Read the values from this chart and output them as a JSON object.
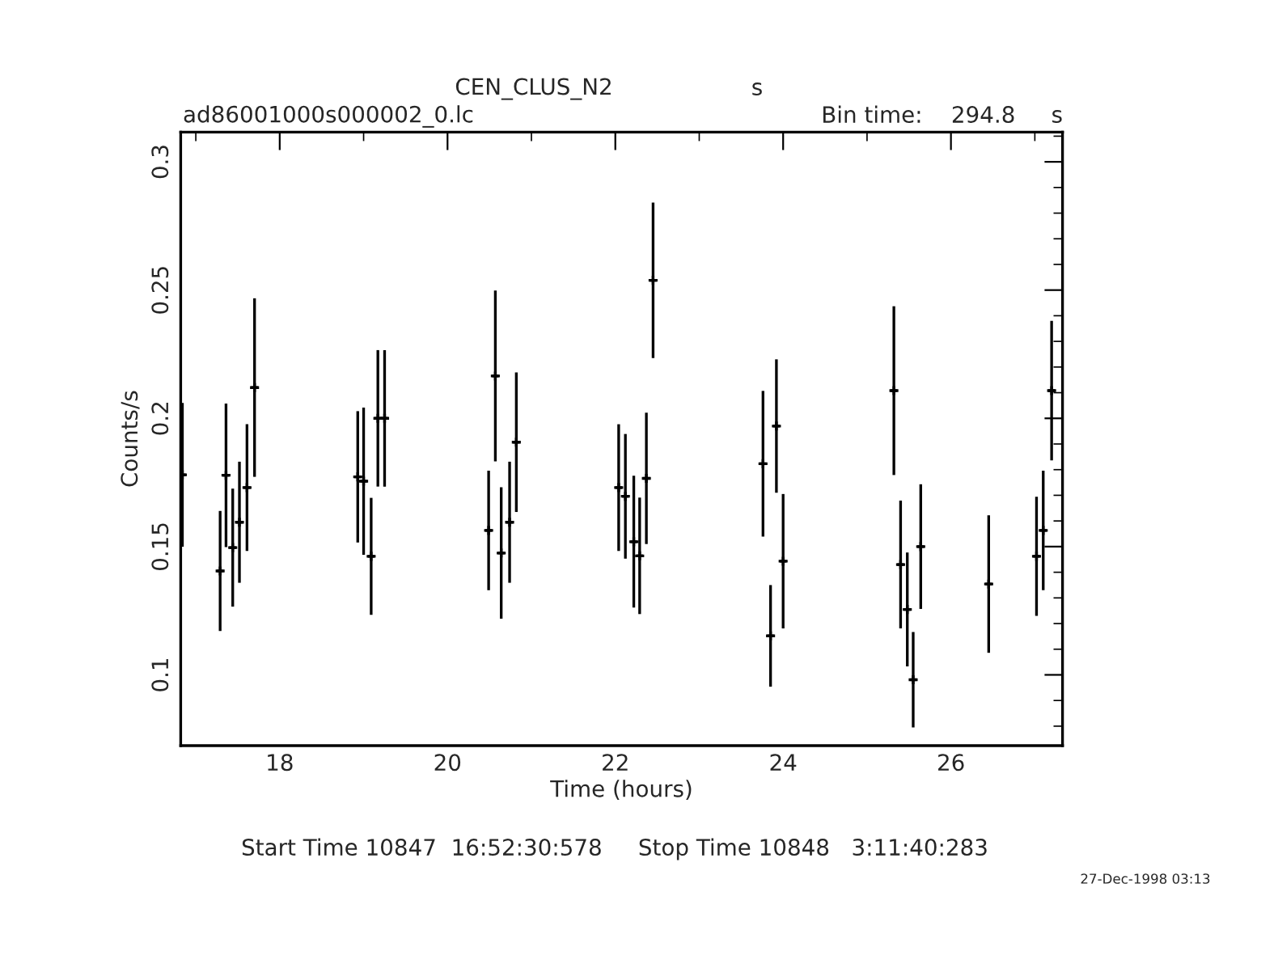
{
  "chart_data": {
    "type": "scatter",
    "title": "CEN_CLUS_N2",
    "xlabel": "Time (hours)",
    "ylabel": "Counts/s",
    "annotations": [
      "s",
      "ad86001000s000002_0.lc",
      "Bin time:    294.8     s",
      "Start Time 10847  16:52:30:578     Stop Time 10848   3:11:40:283",
      "27-Dec-1998 03:13"
    ],
    "xlim": [
      16.82,
      27.33
    ],
    "ylim": [
      0.0724,
      0.3116
    ],
    "xticks": [
      {
        "value": 17,
        "label": null
      },
      18,
      {
        "value": 19,
        "label": null
      },
      20,
      {
        "value": 21,
        "label": null
      },
      22,
      {
        "value": 23,
        "label": null
      },
      24,
      {
        "value": 25,
        "label": null
      },
      26,
      {
        "value": 27,
        "label": null
      }
    ],
    "yticks": [
      {
        "value": 0.08,
        "label": null
      },
      {
        "value": 0.09,
        "label": null
      },
      0.1,
      {
        "value": 0.11,
        "label": null
      },
      {
        "value": 0.12,
        "label": null
      },
      {
        "value": 0.13,
        "label": null
      },
      {
        "value": 0.14,
        "label": null
      },
      0.15,
      {
        "value": 0.16,
        "label": null
      },
      {
        "value": 0.17,
        "label": null
      },
      {
        "value": 0.18,
        "label": null
      },
      {
        "value": 0.19,
        "label": null
      },
      0.2,
      {
        "value": 0.21,
        "label": null
      },
      {
        "value": 0.22,
        "label": null
      },
      {
        "value": 0.23,
        "label": null
      },
      {
        "value": 0.24,
        "label": null
      },
      0.25,
      {
        "value": 0.26,
        "label": null
      },
      {
        "value": 0.27,
        "label": null
      },
      {
        "value": 0.28,
        "label": null
      },
      {
        "value": 0.29,
        "label": null
      },
      0.3,
      {
        "value": 0.31,
        "label": null
      }
    ],
    "marker": "cross",
    "grid": false,
    "legend": false,
    "series": [
      {
        "color": "#000000",
        "x": [
          16.84,
          17.29,
          17.36,
          17.44,
          17.52,
          17.61,
          17.7,
          18.93,
          19.0,
          19.09,
          19.17,
          19.25,
          20.49,
          20.57,
          20.64,
          20.74,
          20.82,
          22.04,
          22.12,
          22.22,
          22.29,
          22.37,
          22.45,
          23.76,
          23.85,
          23.92,
          24.0,
          25.32,
          25.4,
          25.48,
          25.55,
          25.64,
          26.45,
          27.02,
          27.1,
          27.2
        ],
        "values": [
          0.178,
          0.1405,
          0.1778,
          0.1496,
          0.1595,
          0.173,
          0.212,
          0.1772,
          0.1755,
          0.1462,
          0.2,
          0.2,
          0.1563,
          0.2165,
          0.1475,
          0.1595,
          0.1907,
          0.173,
          0.1696,
          0.1519,
          0.1464,
          0.1766,
          0.2538,
          0.1823,
          0.1152,
          0.197,
          0.1443,
          0.2108,
          0.143,
          0.1255,
          0.0981,
          0.15,
          0.1354,
          0.1462,
          0.1563,
          0.2108
        ],
        "errors": [
          0.028,
          0.0234,
          0.028,
          0.023,
          0.0236,
          0.0247,
          0.0348,
          0.0256,
          0.0287,
          0.0228,
          0.0266,
          0.0266,
          0.0233,
          0.0333,
          0.0256,
          0.0236,
          0.0272,
          0.0247,
          0.0243,
          0.0257,
          0.0227,
          0.0256,
          0.0303,
          0.0284,
          0.0198,
          0.026,
          0.0262,
          0.0329,
          0.0249,
          0.0222,
          0.0186,
          0.0243,
          0.0268,
          0.0232,
          0.0233,
          0.0272
        ],
        "xerrors": [
          0.04,
          0.04,
          0.04,
          0.04,
          0.04,
          0.04,
          0.04,
          0.04,
          0.04,
          0.04,
          0.04,
          0.04,
          0.04,
          0.04,
          0.04,
          0.04,
          0.04,
          0.04,
          0.04,
          0.04,
          0.04,
          0.04,
          0.04,
          0.04,
          0.04,
          0.04,
          0.04,
          0.04,
          0.04,
          0.04,
          0.04,
          0.04,
          0.04,
          0.04,
          0.04,
          0.04
        ]
      }
    ]
  }
}
